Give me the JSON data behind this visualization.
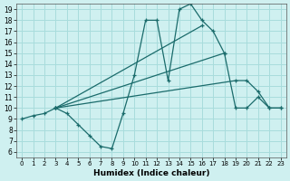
{
  "xlabel": "Humidex (Indice chaleur)",
  "xlim": [
    -0.5,
    23.5
  ],
  "ylim": [
    5.5,
    19.5
  ],
  "xticks": [
    0,
    1,
    2,
    3,
    4,
    5,
    6,
    7,
    8,
    9,
    10,
    11,
    12,
    13,
    14,
    15,
    16,
    17,
    18,
    19,
    20,
    21,
    22,
    23
  ],
  "yticks": [
    6,
    7,
    8,
    9,
    10,
    11,
    12,
    13,
    14,
    15,
    16,
    17,
    18,
    19
  ],
  "bg_color": "#cff0f0",
  "grid_color": "#a8dcdc",
  "line_color": "#1a6b6b",
  "series": [
    {
      "x": [
        0,
        1,
        2,
        3,
        4,
        5,
        6,
        7,
        8,
        9,
        10,
        11,
        12,
        13,
        14,
        15,
        16,
        17,
        18,
        19,
        20,
        21,
        22,
        23
      ],
      "y": [
        9,
        9.3,
        9.5,
        10,
        9.5,
        8.5,
        7.5,
        6.5,
        6.3,
        9.5,
        13,
        18,
        18,
        12.5,
        19,
        19.5,
        18,
        17,
        15,
        10,
        10,
        11,
        10,
        10
      ]
    },
    {
      "x": [
        3,
        19,
        20,
        21,
        22,
        23
      ],
      "y": [
        10,
        12.5,
        12.5,
        11.5,
        10,
        10
      ]
    },
    {
      "x": [
        3,
        18
      ],
      "y": [
        10,
        15
      ]
    },
    {
      "x": [
        3,
        16
      ],
      "y": [
        10,
        17.5
      ]
    }
  ]
}
